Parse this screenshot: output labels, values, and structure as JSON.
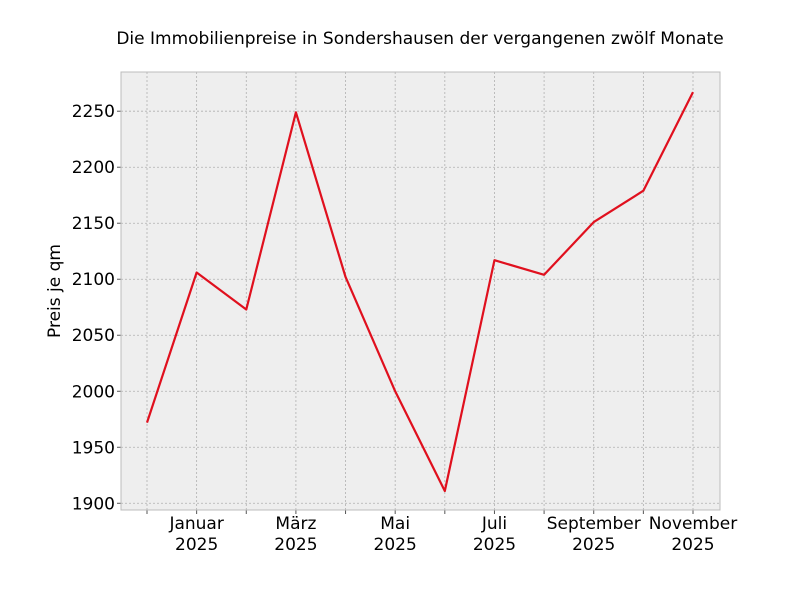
{
  "chart_data": {
    "type": "line",
    "title": "Die Immobilienpreise in Sondershausen der vergangenen zwölf Monate",
    "xlabel": "",
    "ylabel": "Preis je qm",
    "x": [
      "2024-12",
      "2025-01",
      "2025-02",
      "2025-03",
      "2025-04",
      "2025-05",
      "2025-06",
      "2025-07",
      "2025-08",
      "2025-09",
      "2025-10",
      "2025-11"
    ],
    "series": [
      {
        "values": [
          1972,
          2106,
          2073,
          2249,
          2102,
          2000,
          1911,
          2117,
          2104,
          2151,
          2179,
          2267
        ]
      }
    ],
    "ylim": [
      1894,
      2285
    ],
    "yticks": [
      1900,
      1950,
      2000,
      2050,
      2100,
      2150,
      2200,
      2250
    ],
    "xtick_labels": [
      {
        "month": "Januar",
        "year": "2025"
      },
      {
        "month": "März",
        "year": "2025"
      },
      {
        "month": "Mai",
        "year": "2025"
      },
      {
        "month": "Juli",
        "year": "2025"
      },
      {
        "month": "September",
        "year": "2025"
      },
      {
        "month": "November",
        "year": "2025"
      }
    ],
    "grid": true,
    "legend": "none",
    "colors": {
      "line": "#e0101e",
      "background": "#eeeeee",
      "grid": "#b0b0b0",
      "frame": "#bcbcbc"
    }
  }
}
